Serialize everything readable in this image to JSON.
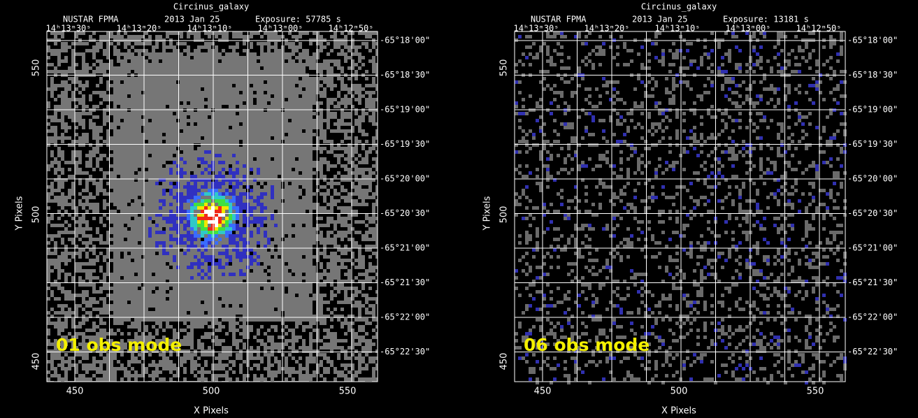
{
  "panels": [
    {
      "object": "Circinus_galaxy",
      "instrument": "NUSTAR FPMA",
      "date": "2013 Jan 25",
      "exposure": "Exposure: 57785 s",
      "ra_labels": [
        "14ʰ13ᵐ30ˢ",
        "14ʰ13ᵐ20ˢ",
        "14ʰ13ᵐ10ˢ",
        "14ʰ13ᵐ00ˢ",
        "14ʰ12ᵐ50ˢ"
      ],
      "dec_labels": [
        "-65°18'00\"",
        "-65°18'30\"",
        "-65°19'00\"",
        "-65°19'30\"",
        "-65°20'00\"",
        "-65°20'30\"",
        "-65°21'00\"",
        "-65°21'30\"",
        "-65°22'00\"",
        "-65°22'30\""
      ],
      "x_ticks": [
        "450",
        "500",
        "550"
      ],
      "y_ticks": [
        "550",
        "500",
        "450"
      ],
      "x_label": "X Pixels",
      "y_label": "Y Pixels",
      "mode_label": "01 obs mode"
    },
    {
      "object": "Circinus_galaxy",
      "instrument": "NUSTAR FPMA",
      "date": "2013 Jan 25",
      "exposure": "Exposure: 13181 s",
      "ra_labels": [
        "14ʰ13ᵐ30ˢ",
        "14ʰ13ᵐ20ˢ",
        "14ʰ13ᵐ10ˢ",
        "14ʰ13ᵐ00ˢ",
        "14ʰ12ᵐ50ˢ"
      ],
      "dec_labels": [
        "-65°18'00\"",
        "-65°18'30\"",
        "-65°19'00\"",
        "-65°19'30\"",
        "-65°20'00\"",
        "-65°20'30\"",
        "-65°21'00\"",
        "-65°21'30\"",
        "-65°22'00\"",
        "-65°22'30\""
      ],
      "x_ticks": [
        "450",
        "500",
        "550"
      ],
      "y_ticks": [
        "550",
        "500",
        "450"
      ],
      "x_label": "X Pixels",
      "y_label": "Y Pixels",
      "mode_label": "06 obs mode"
    }
  ]
}
